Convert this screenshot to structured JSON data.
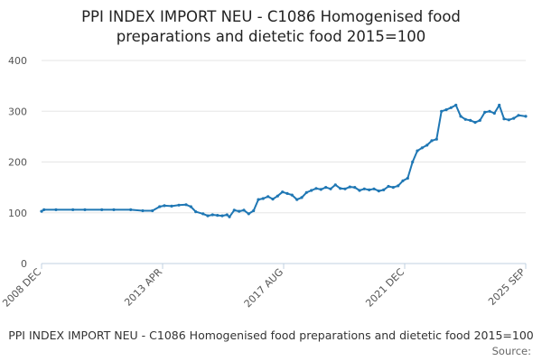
{
  "chart_data": {
    "type": "line",
    "title": "PPI INDEX IMPORT NEU - C1086 Homogenised food\npreparations and dietetic food 2015=100",
    "xlabel": "",
    "ylabel": "",
    "x_tick_labels": [
      "2008 DEC",
      "2013 APR",
      "2017 AUG",
      "2021 DEC",
      "2025 SEP"
    ],
    "y_ticks": [
      0,
      100,
      200,
      300,
      400
    ],
    "ylim": [
      0,
      400
    ],
    "x_range": [
      "2008-12",
      "2025-09"
    ],
    "grid": true,
    "legend_position": "bottom",
    "source_label": "Source:",
    "series": [
      {
        "name": "PPI INDEX IMPORT NEU - C1086 Homogenised food preparations and dietetic food 2015=100",
        "color": "#1f77b4",
        "points": [
          [
            "2008-12",
            103
          ],
          [
            "2009-01",
            106
          ],
          [
            "2009-06",
            106
          ],
          [
            "2010-01",
            106
          ],
          [
            "2010-06",
            106
          ],
          [
            "2011-01",
            106
          ],
          [
            "2011-06",
            106
          ],
          [
            "2012-01",
            106
          ],
          [
            "2012-06",
            104
          ],
          [
            "2012-10",
            104
          ],
          [
            "2013-01",
            112
          ],
          [
            "2013-03",
            114
          ],
          [
            "2013-06",
            113
          ],
          [
            "2013-09",
            115
          ],
          [
            "2013-12",
            116
          ],
          [
            "2014-02",
            112
          ],
          [
            "2014-04",
            102
          ],
          [
            "2014-07",
            98
          ],
          [
            "2014-09",
            94
          ],
          [
            "2014-11",
            96
          ],
          [
            "2015-01",
            95
          ],
          [
            "2015-03",
            94
          ],
          [
            "2015-05",
            96
          ],
          [
            "2015-06",
            92
          ],
          [
            "2015-08",
            105
          ],
          [
            "2015-10",
            103
          ],
          [
            "2015-12",
            105
          ],
          [
            "2016-02",
            98
          ],
          [
            "2016-04",
            104
          ],
          [
            "2016-06",
            126
          ],
          [
            "2016-08",
            128
          ],
          [
            "2016-10",
            132
          ],
          [
            "2016-12",
            127
          ],
          [
            "2017-02",
            133
          ],
          [
            "2017-04",
            141
          ],
          [
            "2017-06",
            138
          ],
          [
            "2017-08",
            135
          ],
          [
            "2017-10",
            126
          ],
          [
            "2017-12",
            130
          ],
          [
            "2018-02",
            140
          ],
          [
            "2018-04",
            144
          ],
          [
            "2018-06",
            148
          ],
          [
            "2018-08",
            146
          ],
          [
            "2018-10",
            150
          ],
          [
            "2018-12",
            147
          ],
          [
            "2019-02",
            155
          ],
          [
            "2019-04",
            148
          ],
          [
            "2019-06",
            147
          ],
          [
            "2019-08",
            151
          ],
          [
            "2019-10",
            150
          ],
          [
            "2019-12",
            144
          ],
          [
            "2020-02",
            147
          ],
          [
            "2020-04",
            145
          ],
          [
            "2020-06",
            147
          ],
          [
            "2020-08",
            143
          ],
          [
            "2020-10",
            145
          ],
          [
            "2020-12",
            152
          ],
          [
            "2021-02",
            150
          ],
          [
            "2021-04",
            153
          ],
          [
            "2021-06",
            163
          ],
          [
            "2021-08",
            168
          ],
          [
            "2021-10",
            200
          ],
          [
            "2021-12",
            222
          ],
          [
            "2022-02",
            228
          ],
          [
            "2022-04",
            233
          ],
          [
            "2022-06",
            242
          ],
          [
            "2022-08",
            245
          ],
          [
            "2022-10",
            300
          ],
          [
            "2022-12",
            303
          ],
          [
            "2023-02",
            307
          ],
          [
            "2023-04",
            312
          ],
          [
            "2023-06",
            290
          ],
          [
            "2023-08",
            284
          ],
          [
            "2023-10",
            282
          ],
          [
            "2023-12",
            278
          ],
          [
            "2024-02",
            282
          ],
          [
            "2024-04",
            298
          ],
          [
            "2024-06",
            300
          ],
          [
            "2024-08",
            296
          ],
          [
            "2024-10",
            312
          ],
          [
            "2024-12",
            285
          ],
          [
            "2025-02",
            283
          ],
          [
            "2025-04",
            286
          ],
          [
            "2025-06",
            292
          ],
          [
            "2025-09",
            290
          ]
        ]
      }
    ]
  }
}
